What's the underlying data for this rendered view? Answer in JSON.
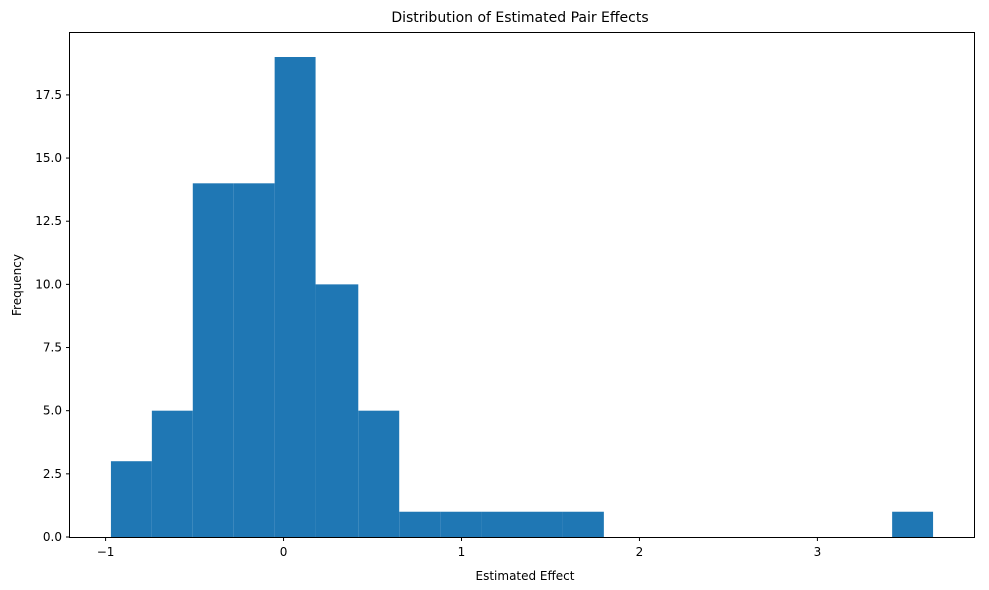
{
  "chart_data": {
    "type": "bar",
    "title": "Distribution of Estimated Pair Effects",
    "xlabel": "Estimated Effect",
    "ylabel": "Frequency",
    "bin_edges": [
      -0.97,
      -0.74,
      -0.51,
      -0.28,
      -0.05,
      0.18,
      0.42,
      0.65,
      0.88,
      1.11,
      1.34,
      1.57,
      1.8,
      2.03,
      2.26,
      2.49,
      2.72,
      2.95,
      3.19,
      3.42,
      3.65
    ],
    "values": [
      3,
      5,
      14,
      14,
      19,
      10,
      5,
      1,
      1,
      1,
      1,
      1,
      0,
      0,
      0,
      0,
      0,
      0,
      0,
      1
    ],
    "xlim": [
      -1.2,
      3.88
    ],
    "ylim": [
      0,
      19.95
    ],
    "xticks": [
      -1,
      0,
      1,
      2,
      3
    ],
    "xtick_labels": [
      "−1",
      "0",
      "1",
      "2",
      "3"
    ],
    "yticks": [
      0.0,
      2.5,
      5.0,
      7.5,
      10.0,
      12.5,
      15.0,
      17.5
    ],
    "ytick_labels": [
      "0.0",
      "2.5",
      "5.0",
      "7.5",
      "10.0",
      "12.5",
      "15.0",
      "17.5"
    ],
    "bar_color": "#1f77b4",
    "grid": false,
    "legend": "none"
  }
}
